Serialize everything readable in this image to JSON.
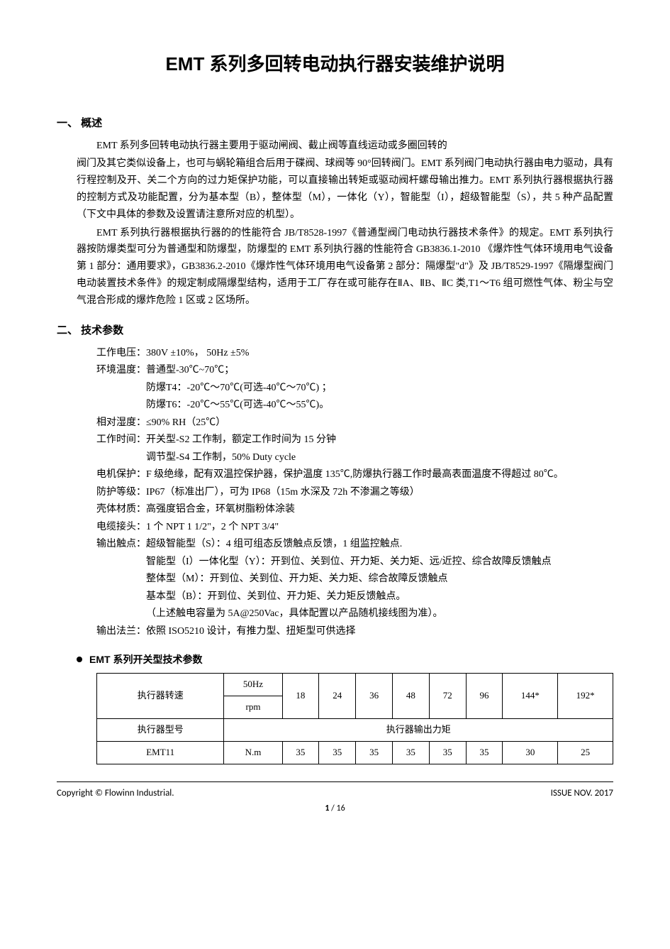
{
  "title": "EMT 系列多回转电动执行器安装维护说明",
  "section1": {
    "heading": "一、 概述",
    "p1": "EMT 系列多回转电动执行器主要用于驱动闸阀、截止阀等直线运动或多圈回转的",
    "p2": "阀门及其它类似设备上，也可与蜗轮箱组合后用于碟阀、球阀等 90°回转阀门。EMT 系列阀门电动执行器由电力驱动，具有行程控制及开、关二个方向的过力矩保护功能，可以直接输出转矩或驱动阀杆螺母输出推力。EMT 系列执行器根据执行器的控制方式及功能配置，分为基本型（B），整体型（M），一体化（Y），智能型（I），超级智能型（S），共 5 种产品配置（下文中具体的参数及设置请注意所对应的机型）。",
    "p3": "EMT 系列执行器根据执行器的的性能符合 JB/T8528-1997《普通型阀门电动执行器技术条件》的规定。EMT 系列执行器按防爆类型可分为普通型和防爆型，防爆型的 EMT 系列执行器的性能符合 GB3836.1-2010 《爆炸性气体环境用电气设备第 1 部分：通用要求》，GB3836.2-2010《爆炸性气体环境用电气设备第 2 部分：隔爆型\"d\"》及 JB/T8529-1997《隔爆型阀门电动装置技术条件》的规定制成隔爆型结构，适用于工厂存在或可能存在ⅡA、ⅡB、ⅡC 类,T1～T6 组可燃性气体、粉尘与空气混合形成的爆炸危险 1 区或 2 区场所。"
  },
  "section2": {
    "heading": "二、 技术参数",
    "specs": {
      "voltage_label": "工作电压：",
      "voltage_value": "380V  ±10%，  50Hz  ±5%",
      "temp_label": "环境温度：",
      "temp_value1": "普通型-30℃~70℃；",
      "temp_value2": "防爆T4：-20℃～70℃(可选-40℃～70℃) ；",
      "temp_value3": "防爆T6：-20℃～55℃(可选-40℃～55℃)。",
      "humidity_label": "相对湿度：",
      "humidity_value": "≤90% RH（25℃）",
      "worktime_label": "工作时间：",
      "worktime_value1": "开关型-S2 工作制，额定工作时间为 15 分钟",
      "worktime_value2": "调节型-S4 工作制，50% Duty cycle",
      "motor_label": "电机保护：",
      "motor_value": "F 级绝缘，配有双温控保护器，保护温度 135℃,防爆执行器工作时最高表面温度不得超过 80℃。",
      "protection_label": "防护等级：",
      "protection_value": "IP67（标准出厂），可为 IP68（15m 水深及 72h 不渗漏之等级）",
      "material_label": "壳体材质：",
      "material_value": "高强度铝合金，环氧树脂粉体涂装",
      "cable_label": "电缆接头：",
      "cable_value": "1 个 NPT 1 1/2\"，2 个 NPT 3/4\"",
      "contact_label": "输出触点：",
      "contact_value1": "超级智能型（S）：4 组可组态反馈触点反馈，1 组监控触点.",
      "contact_value2": "智能型（I）一体化型（Y）：开到位、关到位、开力矩、关力矩、远/近控、综合故障反馈触点",
      "contact_value3": "整体型（M）：开到位、关到位、开力矩、关力矩、综合故障反馈触点",
      "contact_value4": "基本型（B）：开到位、关到位、开力矩、关力矩反馈触点。",
      "contact_value5": "（上述触电容量为 5A@250Vac，具体配置以产品随机接线图为准）。",
      "flange_label": "输出法兰：",
      "flange_value": "依照 ISO5210 设计，有推力型、扭矩型可供选择"
    },
    "table_heading": "EMT 系列开关型技术参数",
    "table": {
      "row1_label": "执行器转速",
      "row1_sub1": "50Hz",
      "row1_sub2": "rpm",
      "speeds": [
        "18",
        "24",
        "36",
        "48",
        "72",
        "96",
        "144*",
        "192*"
      ],
      "row2_label": "执行器型号",
      "row2_span": "执行器输出力矩",
      "row3_model": "EMT11",
      "row3_unit": "N.m",
      "torques": [
        "35",
        "35",
        "35",
        "35",
        "35",
        "35",
        "30",
        "25"
      ]
    }
  },
  "footer": {
    "copyright": "Copyright  ©   Flowinn  Industrial.",
    "issue": "ISSUE  NOV.  2017",
    "page_cur": "1",
    "page_sep": " / ",
    "page_total": "16"
  }
}
